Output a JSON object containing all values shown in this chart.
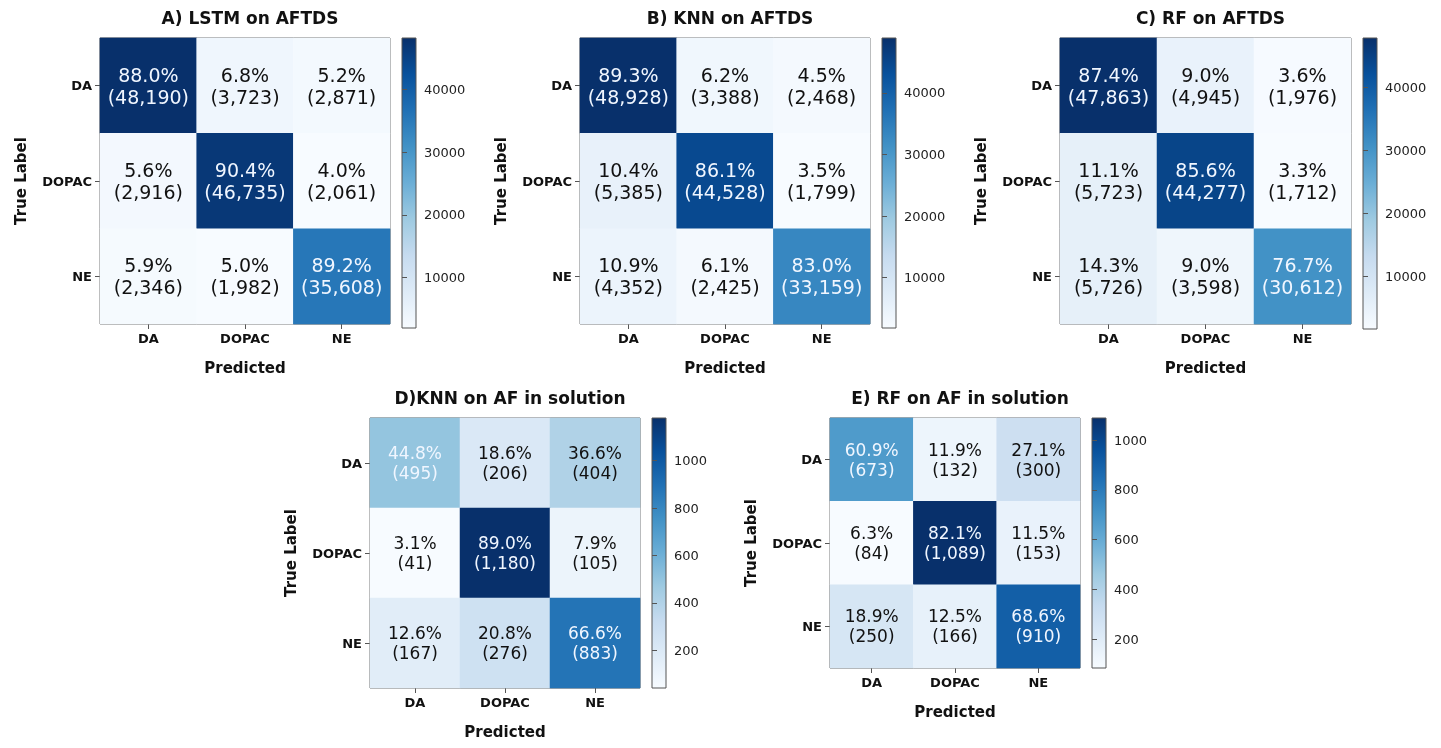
{
  "chart_data": [
    {
      "type": "heatmap",
      "title": "A) LSTM on AFTDS",
      "xlabel": "Predicted",
      "ylabel": "True Label",
      "categories": [
        "DA",
        "DOPAC",
        "NE"
      ],
      "y_categories": [
        "DA",
        "DOPAC",
        "NE"
      ],
      "cells": [
        [
          48190,
          3723,
          2871
        ],
        [
          2916,
          46735,
          2061
        ],
        [
          2346,
          1982,
          35608
        ]
      ],
      "cell_labels": [
        [
          "88.0%\n(48,190)",
          "6.8%\n(3,723)",
          "5.2%\n(2,871)"
        ],
        [
          "5.6%\n(2,916)",
          "90.4%\n(46,735)",
          "4.0%\n(2,061)"
        ],
        [
          "5.9%\n(2,346)",
          "5.0%\n(1,982)",
          "89.2%\n(35,608)"
        ]
      ],
      "clim": [
        1982,
        48190
      ],
      "cticks": [
        10000,
        20000,
        30000,
        40000
      ]
    },
    {
      "type": "heatmap",
      "title": "B) KNN on AFTDS",
      "xlabel": "Predicted",
      "ylabel": "True Label",
      "categories": [
        "DA",
        "DOPAC",
        "NE"
      ],
      "y_categories": [
        "DA",
        "DOPAC",
        "NE"
      ],
      "cells": [
        [
          48928,
          3388,
          2468
        ],
        [
          5385,
          44528,
          1799
        ],
        [
          4352,
          2425,
          33159
        ]
      ],
      "cell_labels": [
        [
          "89.3%\n(48,928)",
          "6.2%\n(3,388)",
          "4.5%\n(2,468)"
        ],
        [
          "10.4%\n(5,385)",
          "86.1%\n(44,528)",
          "3.5%\n(1,799)"
        ],
        [
          "10.9%\n(4,352)",
          "6.1%\n(2,425)",
          "83.0%\n(33,159)"
        ]
      ],
      "clim": [
        1799,
        48928
      ],
      "cticks": [
        10000,
        20000,
        30000,
        40000
      ]
    },
    {
      "type": "heatmap",
      "title": "C) RF on AFTDS",
      "xlabel": "Predicted",
      "ylabel": "True Label",
      "categories": [
        "DA",
        "DOPAC",
        "NE"
      ],
      "y_categories": [
        "DA",
        "DOPAC",
        "NE"
      ],
      "cells": [
        [
          47863,
          4945,
          1976
        ],
        [
          5723,
          44277,
          1712
        ],
        [
          5726,
          3598,
          30612
        ]
      ],
      "cell_labels": [
        [
          "87.4%\n(47,863)",
          "9.0%\n(4,945)",
          "3.6%\n(1,976)"
        ],
        [
          "11.1%\n(5,723)",
          "85.6%\n(44,277)",
          "3.3%\n(1,712)"
        ],
        [
          "14.3%\n(5,726)",
          "9.0%\n(3,598)",
          "76.7%\n(30,612)"
        ]
      ],
      "clim": [
        1712,
        47863
      ],
      "cticks": [
        10000,
        20000,
        30000,
        40000
      ]
    },
    {
      "type": "heatmap",
      "title": "D)KNN on AF in solution",
      "xlabel": "Predicted",
      "ylabel": "True Label",
      "categories": [
        "DA",
        "DOPAC",
        "NE"
      ],
      "y_categories": [
        "DA",
        "DOPAC",
        "NE"
      ],
      "cells": [
        [
          495,
          206,
          404
        ],
        [
          41,
          1180,
          105
        ],
        [
          167,
          276,
          883
        ]
      ],
      "cell_labels": [
        [
          "44.8%\n(495)",
          "18.6%\n(206)",
          "36.6%\n(404)"
        ],
        [
          "3.1%\n(41)",
          "89.0%\n(1,180)",
          "7.9%\n(105)"
        ],
        [
          "12.6%\n(167)",
          "20.8%\n(276)",
          "66.6%\n(883)"
        ]
      ],
      "clim": [
        41,
        1180
      ],
      "cticks": [
        200,
        400,
        600,
        800,
        1000
      ]
    },
    {
      "type": "heatmap",
      "title": "E) RF on AF in solution",
      "xlabel": "Predicted",
      "ylabel": "True Label",
      "categories": [
        "DA",
        "DOPAC",
        "NE"
      ],
      "y_categories": [
        "DA",
        "DOPAC",
        "NE"
      ],
      "cells": [
        [
          673,
          132,
          300
        ],
        [
          84,
          1089,
          153
        ],
        [
          250,
          166,
          910
        ]
      ],
      "cell_labels": [
        [
          "60.9%\n(673)",
          "11.9%\n(132)",
          "27.1%\n(300)"
        ],
        [
          "6.3%\n(84)",
          "82.1%\n(1,089)",
          "11.5%\n(153)"
        ],
        [
          "18.9%\n(250)",
          "12.5%\n(166)",
          "68.6%\n(910)"
        ]
      ],
      "clim": [
        84,
        1089
      ],
      "cticks": [
        200,
        400,
        600,
        800,
        1000
      ]
    }
  ]
}
